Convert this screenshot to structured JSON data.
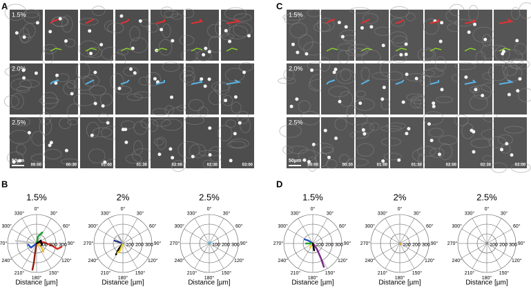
{
  "panels": {
    "A": {
      "label": "A",
      "rows": [
        "1.5%",
        "2.0%",
        "2.5%"
      ],
      "timestamps": [
        "00:00",
        "00:30",
        "01:00",
        "01:30",
        "02:00",
        "02:30",
        "03:00"
      ],
      "scale_bar": "50µm"
    },
    "C": {
      "label": "C",
      "rows": [
        "1.5%",
        "2.0%",
        "2.5%"
      ],
      "timestamps": [
        "00:00",
        "00:30",
        "01:00",
        "01:30",
        "02:00",
        "02:30",
        "03:00"
      ],
      "scale_bar": "50µm"
    },
    "B": {
      "label": "B",
      "plots": [
        {
          "title": "1.5%"
        },
        {
          "title": "2%"
        },
        {
          "title": "2.5%"
        }
      ]
    },
    "D": {
      "label": "D",
      "plots": [
        {
          "title": "1.5%"
        },
        {
          "title": "2%"
        },
        {
          "title": "2.5%"
        }
      ]
    }
  },
  "polar": {
    "angle_labels": [
      "0°",
      "30°",
      "60°",
      "90°",
      "120°",
      "150°",
      "180°",
      "210°",
      "240°",
      "270°",
      "300°",
      "330°"
    ],
    "radial_labels": [
      "100",
      "200",
      "300"
    ],
    "axis_label": "Distance [µm]"
  }
}
